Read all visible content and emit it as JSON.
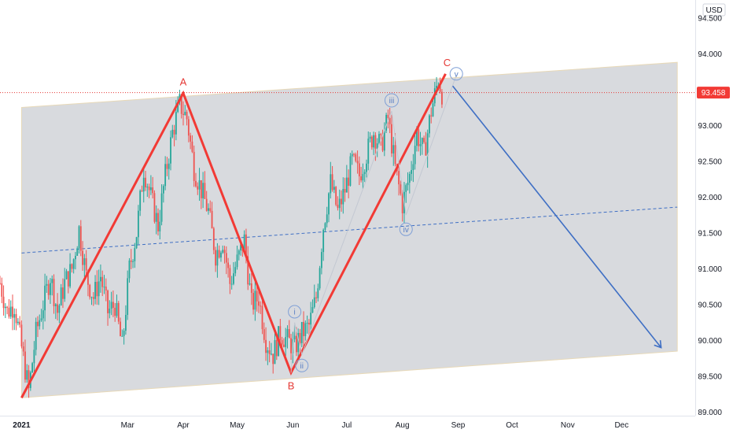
{
  "chart_data": {
    "type": "line",
    "currency": "USD",
    "y_ticks": [
      "94.500",
      "94.000",
      "93.500",
      "93.000",
      "92.500",
      "92.000",
      "91.500",
      "91.000",
      "90.500",
      "90.000",
      "89.500",
      "89.000"
    ],
    "x_ticks": [
      {
        "label": "2021",
        "x": 0
      },
      {
        "label": "Mar",
        "x": 59
      },
      {
        "label": "Apr",
        "x": 90
      },
      {
        "label": "May",
        "x": 120
      },
      {
        "label": "Jun",
        "x": 151
      },
      {
        "label": "Jul",
        "x": 181
      },
      {
        "label": "Aug",
        "x": 212
      },
      {
        "label": "Sep",
        "x": 243
      },
      {
        "label": "Oct",
        "x": 273
      },
      {
        "label": "Nov",
        "x": 304
      },
      {
        "label": "Dec",
        "x": 334
      }
    ],
    "ylim": [
      88.95,
      94.75
    ],
    "xlim": [
      -12,
      375
    ],
    "last_price": "93.458",
    "last_price_value": 93.458,
    "price_series": [
      {
        "x": -12,
        "y": 90.8
      },
      {
        "x": -8,
        "y": 90.4
      },
      {
        "x": -4,
        "y": 90.5
      },
      {
        "x": 0,
        "y": 89.9
      },
      {
        "x": 4,
        "y": 89.3
      },
      {
        "x": 8,
        "y": 90.1
      },
      {
        "x": 12,
        "y": 90.5
      },
      {
        "x": 16,
        "y": 90.9
      },
      {
        "x": 20,
        "y": 90.4
      },
      {
        "x": 24,
        "y": 90.8
      },
      {
        "x": 28,
        "y": 91.0
      },
      {
        "x": 32,
        "y": 91.55
      },
      {
        "x": 36,
        "y": 90.9
      },
      {
        "x": 40,
        "y": 90.6
      },
      {
        "x": 44,
        "y": 90.9
      },
      {
        "x": 48,
        "y": 90.4
      },
      {
        "x": 52,
        "y": 90.5
      },
      {
        "x": 56,
        "y": 89.9
      },
      {
        "x": 60,
        "y": 91.0
      },
      {
        "x": 64,
        "y": 91.5
      },
      {
        "x": 68,
        "y": 92.4
      },
      {
        "x": 72,
        "y": 92.0
      },
      {
        "x": 76,
        "y": 91.6
      },
      {
        "x": 80,
        "y": 92.3
      },
      {
        "x": 84,
        "y": 92.9
      },
      {
        "x": 88,
        "y": 93.3
      },
      {
        "x": 92,
        "y": 93.1
      },
      {
        "x": 96,
        "y": 92.4
      },
      {
        "x": 100,
        "y": 92.1
      },
      {
        "x": 104,
        "y": 91.8
      },
      {
        "x": 108,
        "y": 91.2
      },
      {
        "x": 112,
        "y": 91.4
      },
      {
        "x": 116,
        "y": 90.8
      },
      {
        "x": 120,
        "y": 91.1
      },
      {
        "x": 124,
        "y": 91.4
      },
      {
        "x": 128,
        "y": 90.5
      },
      {
        "x": 132,
        "y": 90.6
      },
      {
        "x": 136,
        "y": 90.0
      },
      {
        "x": 140,
        "y": 89.8
      },
      {
        "x": 144,
        "y": 90.1
      },
      {
        "x": 148,
        "y": 90.0
      },
      {
        "x": 152,
        "y": 89.9
      },
      {
        "x": 156,
        "y": 90.1
      },
      {
        "x": 160,
        "y": 90.2
      },
      {
        "x": 164,
        "y": 90.6
      },
      {
        "x": 168,
        "y": 91.6
      },
      {
        "x": 172,
        "y": 92.2
      },
      {
        "x": 176,
        "y": 91.8
      },
      {
        "x": 180,
        "y": 92.1
      },
      {
        "x": 184,
        "y": 92.5
      },
      {
        "x": 188,
        "y": 92.3
      },
      {
        "x": 192,
        "y": 92.6
      },
      {
        "x": 196,
        "y": 92.9
      },
      {
        "x": 200,
        "y": 92.7
      },
      {
        "x": 204,
        "y": 93.1
      },
      {
        "x": 208,
        "y": 92.4
      },
      {
        "x": 212,
        "y": 91.9
      },
      {
        "x": 216,
        "y": 92.3
      },
      {
        "x": 220,
        "y": 92.9
      },
      {
        "x": 224,
        "y": 92.6
      },
      {
        "x": 228,
        "y": 93.2
      },
      {
        "x": 232,
        "y": 93.65
      },
      {
        "x": 234,
        "y": 93.458
      }
    ],
    "annotations": {
      "channel": {
        "upper": [
          {
            "x": 0,
            "y": 93.25
          },
          {
            "x": 365,
            "y": 93.88
          }
        ],
        "lower": [
          {
            "x": 0,
            "y": 89.2
          },
          {
            "x": 365,
            "y": 89.85
          }
        ],
        "mid": [
          {
            "x": 0,
            "y": 91.22
          },
          {
            "x": 365,
            "y": 91.86
          }
        ]
      },
      "wave_path": [
        {
          "label": "",
          "x": 0,
          "y": 89.2
        },
        {
          "label": "A",
          "x": 90,
          "y": 93.45
        },
        {
          "label": "B",
          "x": 150,
          "y": 89.55
        },
        {
          "label": "C",
          "x": 236,
          "y": 93.72
        }
      ],
      "projection": [
        {
          "x": 240,
          "y": 93.55
        },
        {
          "x": 356,
          "y": 89.9
        }
      ],
      "sub_waves": [
        {
          "label": "i",
          "x": 152,
          "y": 90.4,
          "target_y": 90.25
        },
        {
          "label": "ii",
          "x": 156,
          "y": 89.65,
          "target_y": 89.8
        },
        {
          "label": "iii",
          "x": 206,
          "y": 93.35,
          "target_y": 93.2
        },
        {
          "label": "iv",
          "x": 214,
          "y": 91.55,
          "target_y": 91.75
        },
        {
          "label": "v",
          "x": 242,
          "y": 93.72,
          "target_y": 93.7
        }
      ]
    }
  }
}
